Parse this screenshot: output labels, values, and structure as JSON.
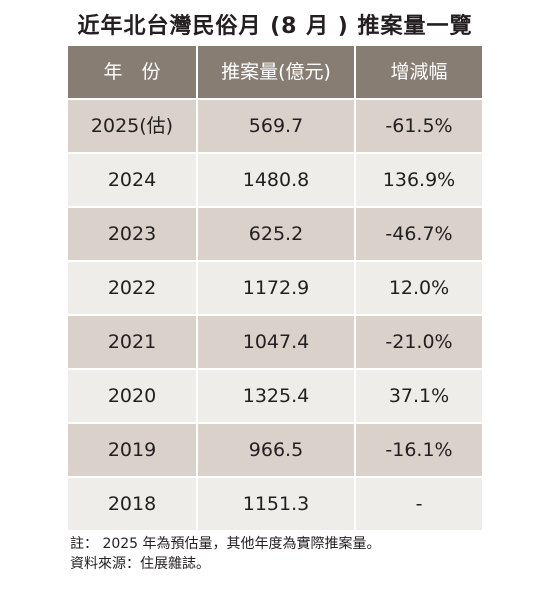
{
  "title": "近年北台灣民俗月 (8 月 ) 推案量一覽",
  "table": {
    "headers": [
      "年　份",
      "推案量(億元)",
      "增減幅"
    ],
    "rows": [
      {
        "year": "2025(估)",
        "amount": "569.7",
        "change": "-61.5%"
      },
      {
        "year": "2024",
        "amount": "1480.8",
        "change": "136.9%"
      },
      {
        "year": "2023",
        "amount": "625.2",
        "change": "-46.7%"
      },
      {
        "year": "2022",
        "amount": "1172.9",
        "change": "12.0%"
      },
      {
        "year": "2021",
        "amount": "1047.4",
        "change": "-21.0%"
      },
      {
        "year": "2020",
        "amount": "1325.4",
        "change": "37.1%"
      },
      {
        "year": "2019",
        "amount": "966.5",
        "change": "-16.1%"
      },
      {
        "year": "2018",
        "amount": "1151.3",
        "change": "-"
      }
    ]
  },
  "notes": {
    "note": "註： 2025 年為預估量，其他年度為實際推案量。",
    "source": "資料來源：住展雜誌。"
  },
  "colors": {
    "header_bg": "#877d72",
    "row_shade": "#d9d1ca",
    "row_plain": "#efedea"
  }
}
